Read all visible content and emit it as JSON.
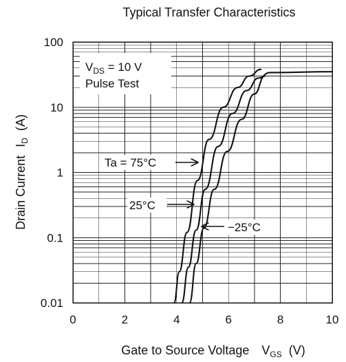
{
  "chart_data": {
    "type": "line",
    "title": "Typical Transfer Characteristics",
    "xlabel": {
      "main": "Gate to Source Voltage",
      "symbol": "V",
      "subscript": "GS",
      "unit": "(V)"
    },
    "ylabel": {
      "main": "Drain Current",
      "symbol": "I",
      "subscript": "D",
      "unit": "(A)"
    },
    "x_ticks": [
      "0",
      "2",
      "4",
      "6",
      "8",
      "10"
    ],
    "y_ticks": [
      "100",
      "10",
      "1",
      "0.1",
      "0.01"
    ],
    "xlim": [
      0,
      10
    ],
    "ylim": [
      0.01,
      100
    ],
    "y_scale": "log",
    "grid": true,
    "annotations": {
      "condition_line1_prefix": "V",
      "condition_line1_subscript": "DS",
      "condition_line1_suffix": " = 10 V",
      "condition_line2": "Pulse Test",
      "ta75": "Ta = 75°C",
      "ta25": "25°C",
      "tam25": "−25°C"
    },
    "series": [
      {
        "name": "Ta = 75°C",
        "x": [
          3.9,
          4.1,
          4.4,
          4.8,
          5.25,
          5.8,
          6.35,
          6.8,
          7.25
        ],
        "y": [
          0.01,
          0.03,
          0.12,
          0.75,
          3.2,
          10.0,
          20.0,
          30.0,
          38.0
        ]
      },
      {
        "name": "25°C",
        "x": [
          4.2,
          4.45,
          4.75,
          5.1,
          5.6,
          6.15,
          6.7,
          7.15,
          7.6,
          10.0
        ],
        "y": [
          0.01,
          0.035,
          0.13,
          0.55,
          2.5,
          8.0,
          18.0,
          28.0,
          34.0,
          35.0
        ]
      },
      {
        "name": "−25°C",
        "x": [
          4.5,
          4.75,
          5.05,
          5.45,
          5.95,
          6.5,
          7.0,
          7.4
        ],
        "y": [
          0.01,
          0.04,
          0.14,
          0.55,
          2.1,
          6.5,
          16.0,
          30.0
        ]
      }
    ]
  }
}
